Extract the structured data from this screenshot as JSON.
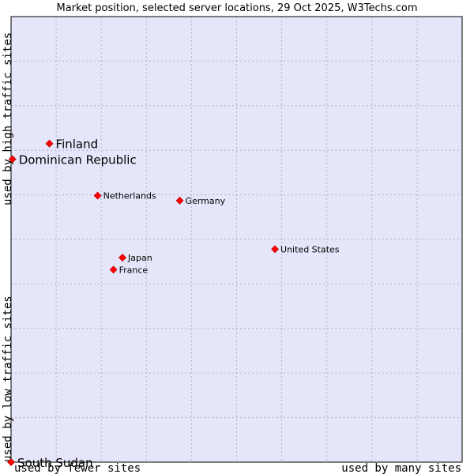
{
  "colors": {
    "plot_background": "#e6e6fa",
    "grid": "#b4b4c8",
    "frame": "#000000",
    "point": "#ff0000",
    "point_stroke": "#aa0000"
  },
  "chart_data": {
    "type": "scatter",
    "title": "Market position, selected server locations, 29 Oct 2025, W3Techs.com",
    "x_axis": {
      "label_low": "used by fewer sites",
      "label_high": "used by many sites",
      "range": [
        0,
        100
      ],
      "grid_divisions": 10,
      "grid": true
    },
    "y_axis": {
      "label_low": "used by low traffic sites",
      "label_high": "used by high traffic sites",
      "range": [
        0,
        100
      ],
      "grid_divisions": 10,
      "grid": true
    },
    "points": [
      {
        "name": "Finland",
        "x": 8.5,
        "y": 71.5,
        "emphasis": true
      },
      {
        "name": "Dominican Republic",
        "x": 0.3,
        "y": 68.0,
        "emphasis": true
      },
      {
        "name": "Netherlands",
        "x": 19.2,
        "y": 59.8,
        "emphasis": false
      },
      {
        "name": "Germany",
        "x": 37.4,
        "y": 58.7,
        "emphasis": false
      },
      {
        "name": "United States",
        "x": 58.5,
        "y": 47.8,
        "emphasis": false
      },
      {
        "name": "Japan",
        "x": 24.7,
        "y": 45.9,
        "emphasis": false
      },
      {
        "name": "France",
        "x": 22.7,
        "y": 43.2,
        "emphasis": false
      },
      {
        "name": "South Sudan",
        "x": 0.0,
        "y": 0.0,
        "emphasis": true
      }
    ]
  }
}
